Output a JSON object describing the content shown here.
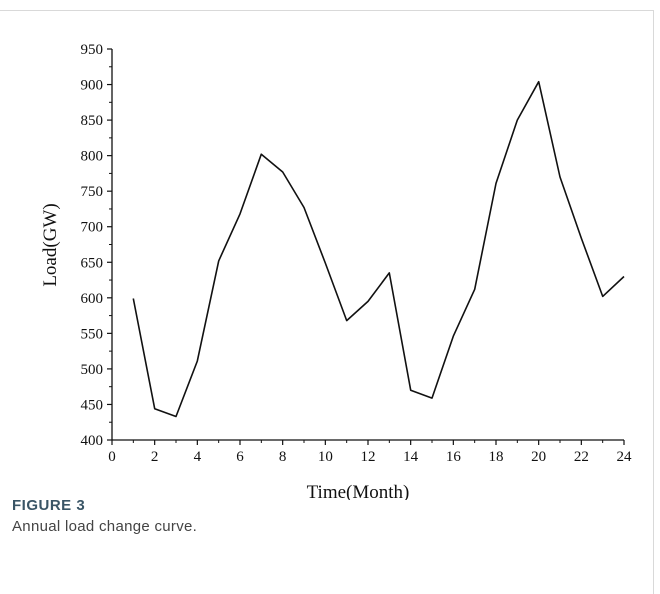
{
  "figure": {
    "label": "FIGURE 3",
    "caption": "Annual load change curve."
  },
  "chart_data": {
    "type": "line",
    "xlabel": "Time(Month)",
    "ylabel": "Load(GW)",
    "xlim": [
      0,
      24
    ],
    "ylim": [
      400,
      950
    ],
    "x_ticks": [
      0,
      2,
      4,
      6,
      8,
      10,
      12,
      14,
      16,
      18,
      20,
      22,
      24
    ],
    "y_ticks": [
      400,
      450,
      500,
      550,
      600,
      650,
      700,
      750,
      800,
      850,
      900,
      950
    ],
    "grid": false,
    "series": [
      {
        "x": [
          1,
          2,
          3,
          4,
          5,
          6,
          7,
          8,
          9,
          10,
          11,
          12,
          13,
          14,
          15,
          16,
          17,
          18,
          19,
          20,
          21,
          22,
          23,
          24
        ],
        "y": [
          599,
          444,
          433,
          511,
          652,
          718,
          802,
          777,
          727,
          649,
          568,
          595,
          635,
          470,
          459,
          546,
          612,
          761,
          850,
          904,
          770,
          684,
          602,
          630
        ],
        "color": "#111111"
      }
    ]
  }
}
